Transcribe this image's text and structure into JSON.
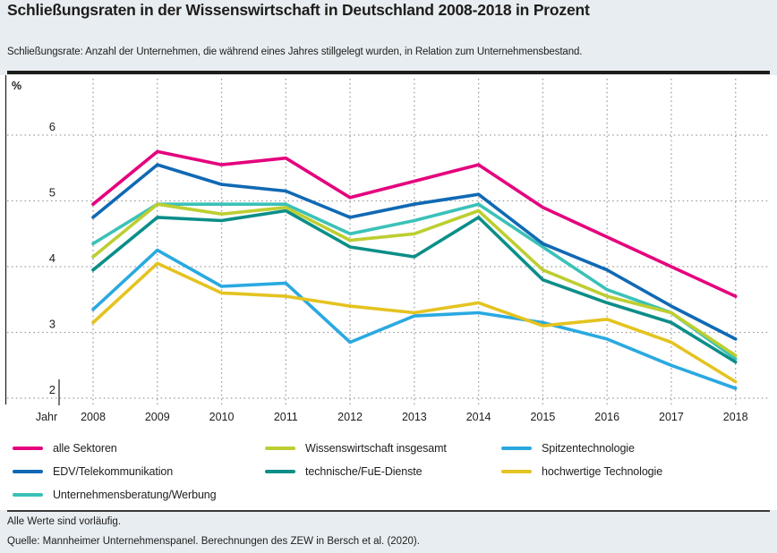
{
  "header": {
    "title": "Schließungsraten in der Wissenswirtschaft in Deutschland 2008-2018 in Prozent",
    "subtitle": "Schließungsrate: Anzahl der Unternehmen, die während eines Jahres stillgelegt wurden, in Relation zum Unternehmensbestand."
  },
  "axis": {
    "unit_label": "%",
    "x_axis_label": "Jahr",
    "y_ticks": [
      6,
      5,
      4,
      3,
      2
    ],
    "ylim": [
      2,
      6
    ]
  },
  "chart_data": {
    "type": "line",
    "title": "Schließungsraten in der Wissenswirtschaft in Deutschland 2008-2018 in Prozent",
    "xlabel": "Jahr",
    "ylabel": "%",
    "ylim": [
      2,
      6
    ],
    "grid": "dotted horizontal and vertical gridlines",
    "legend_position": "below chart, three columns",
    "x": [
      2008,
      2009,
      2010,
      2011,
      2012,
      2013,
      2014,
      2015,
      2016,
      2017,
      2018
    ],
    "series": [
      {
        "key": "alle_sektoren",
        "label": "alle Sektoren",
        "color": "#e5007d",
        "values": [
          4.95,
          5.75,
          5.55,
          5.65,
          5.05,
          5.3,
          5.55,
          4.9,
          4.45,
          4.0,
          3.55
        ],
        "z": 7
      },
      {
        "key": "edv_telekommunikation",
        "label": "EDV/Telekommunikation",
        "color": "#1069b4",
        "values": [
          4.75,
          5.55,
          5.25,
          5.15,
          4.75,
          4.95,
          5.1,
          4.35,
          3.95,
          3.4,
          2.9
        ],
        "z": 6
      },
      {
        "key": "unternehmensberatung_werbung",
        "label": "Unternehmensberatung/Werbung",
        "color": "#3bc1b8",
        "values": [
          4.35,
          4.95,
          4.95,
          4.95,
          4.5,
          4.7,
          4.95,
          4.3,
          3.65,
          3.3,
          2.6
        ],
        "z": 3
      },
      {
        "key": "wissenswirtschaft_insgesamt",
        "label": "Wissenswirtschaft insgesamt",
        "color": "#bdce31",
        "values": [
          4.15,
          4.95,
          4.8,
          4.9,
          4.4,
          4.5,
          4.85,
          3.95,
          3.55,
          3.3,
          2.65
        ],
        "z": 5
      },
      {
        "key": "technische_fue_dienste",
        "label": "technische/FuE-Dienste",
        "color": "#0b8e89",
        "values": [
          3.95,
          4.75,
          4.7,
          4.85,
          4.3,
          4.15,
          4.75,
          3.8,
          3.45,
          3.15,
          2.55
        ],
        "z": 4
      },
      {
        "key": "spitzentechnologie",
        "label": "Spitzentechnologie",
        "color": "#2aa9e0",
        "values": [
          3.35,
          4.25,
          3.7,
          3.75,
          2.85,
          3.25,
          3.3,
          3.15,
          2.9,
          2.5,
          2.15
        ],
        "z": 1
      },
      {
        "key": "hochwertige_technologie",
        "label": "hochwertige Technologie",
        "color": "#e4c320",
        "values": [
          3.15,
          4.05,
          3.6,
          3.55,
          3.4,
          3.3,
          3.45,
          3.1,
          3.2,
          2.85,
          2.25
        ],
        "z": 2
      }
    ]
  },
  "legend": {
    "columns": [
      [
        "alle_sektoren",
        "edv_telekommunikation",
        "unternehmensberatung_werbung"
      ],
      [
        "wissenswirtschaft_insgesamt",
        "technische_fue_dienste"
      ],
      [
        "spitzentechnologie",
        "hochwertige_technologie"
      ]
    ]
  },
  "footer": {
    "note": "Alle Werte sind vorläufig.",
    "source": "Quelle: Mannheimer Unternehmenspanel. Berechnungen des ZEW in Bersch et al. (2020)."
  },
  "colors": {
    "background": "#e8edf1",
    "panel": "#ffffff",
    "gridline": "#9b9b9b",
    "text": "#1d1d1b",
    "rule": "#1d1d1b",
    "separator": "#3a3a39"
  }
}
